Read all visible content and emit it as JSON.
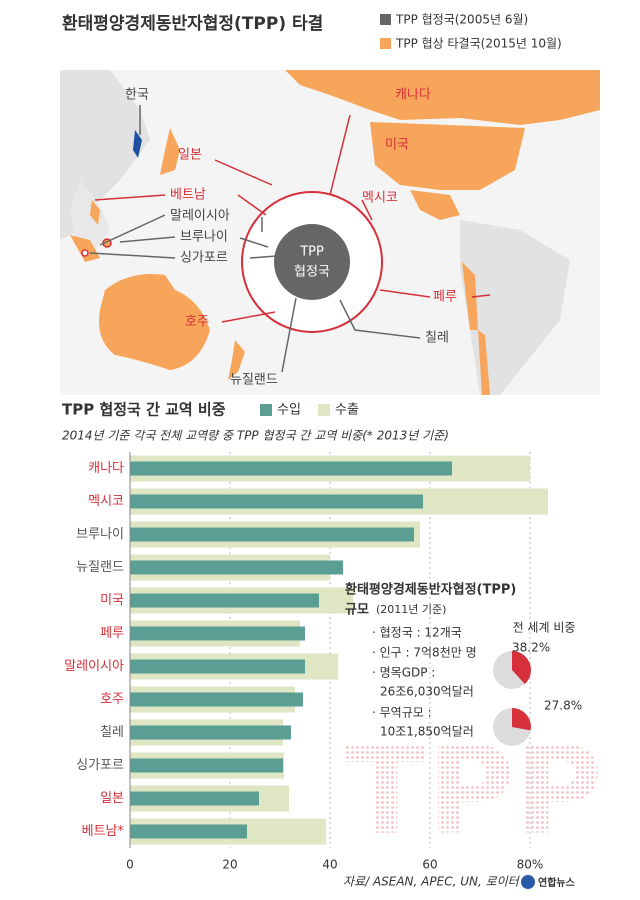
{
  "header": {
    "title": "환태평양경제동반자협정(TPP) 타결",
    "legend": [
      "TPP 협정국(2005년 6월)",
      "TPP 협상 타결국(2015년 10월)"
    ]
  },
  "map": {
    "center": [
      "TPP",
      "협정국"
    ],
    "labels": [
      "한국",
      "일본",
      "베트남",
      "말레이시아",
      "브루나이",
      "싱가포르",
      "호주",
      "뉴질랜드",
      "캐나다",
      "미국",
      "멕시코",
      "페루",
      "칠레"
    ]
  },
  "chart_data": [
    {
      "type": "hbar",
      "title": "TPP 협정국 간 교역 비중",
      "subtitle": "2014년 기준 각국 전체 교역량 중 TPP 협정국 간 교역 비중(* 2013년 기준)",
      "categories": [
        "캐나다",
        "멕시코",
        "브루나이",
        "뉴질랜드",
        "미국",
        "페루",
        "말레이시아",
        "호주",
        "칠레",
        "싱가포르",
        "일본",
        "베트남*"
      ],
      "category_colors": [
        "#d6303a",
        "#d6303a",
        "#555555",
        "#555555",
        "#d6303a",
        "#d6303a",
        "#d6303a",
        "#d6303a",
        "#555555",
        "#555555",
        "#d6303a",
        "#d6303a"
      ],
      "series": [
        {
          "name": "수입",
          "color": "#5a9e94",
          "values": [
            64.4,
            58.6,
            56.8,
            42.6,
            37.8,
            35,
            35,
            34.6,
            32.2,
            30.6,
            25.8,
            23.4
          ]
        },
        {
          "name": "수출",
          "color": "#dfe6c4",
          "values": [
            80,
            83.6,
            58,
            40,
            44.6,
            34,
            41.6,
            33,
            30.6,
            30.8,
            31.8,
            39.2
          ]
        }
      ],
      "xlim": [
        0,
        80
      ],
      "xticks": [
        0,
        20,
        40,
        60,
        {
          "value": 80,
          "label": "80%"
        }
      ]
    },
    {
      "type": "pie",
      "title": "전 세계 비중",
      "color": "#d6303a",
      "values": [
        38.2,
        27.8
      ],
      "value_labels": [
        "38.2%",
        "27.8%"
      ]
    }
  ],
  "info": {
    "title": "환태평양경제동반자협정(TPP)",
    "title2": "규모",
    "subtitle": "(2011년 기준)",
    "items": [
      "· 협정국 : 12개국",
      "· 인구 : 7억8천만 명",
      "· 명목GDP :",
      "26조6,030억달러",
      "· 무역규모 :",
      "10조1,850억달러"
    ],
    "watermark": "TPP"
  },
  "footer": {
    "source": "자료/ ASEAN, APEC, UN, 로이터",
    "logo": "연합뉴스"
  }
}
